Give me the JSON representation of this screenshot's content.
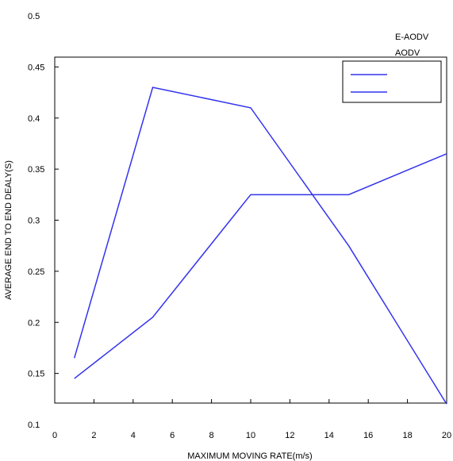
{
  "chart_data": {
    "type": "line",
    "xlabel": "MAXIMUM MOVING RATE(m/s)",
    "ylabel": "AVERAGE END TO END DEALY(S)",
    "xlim": [
      0,
      20
    ],
    "ylim": [
      0.1,
      0.5
    ],
    "x_ticks": [
      "0",
      "2",
      "4",
      "6",
      "8",
      "10",
      "12",
      "14",
      "16",
      "18",
      "20"
    ],
    "y_ticks": [
      "0.1",
      "0.15",
      "0.2",
      "0.25",
      "0.3",
      "0.35",
      "0.4",
      "0.45",
      "0.5"
    ],
    "grid": false,
    "legend_position": "top-right",
    "series": [
      {
        "name": "E-AODV",
        "color": "#3333ee",
        "x": [
          1,
          5,
          10,
          15,
          20
        ],
        "y": [
          0.165,
          0.43,
          0.41,
          0.275,
          0.12
        ]
      },
      {
        "name": "AODV",
        "color": "#3333ee",
        "x": [
          1,
          5,
          10,
          15,
          20
        ],
        "y": [
          0.145,
          0.205,
          0.325,
          0.325,
          0.365
        ]
      }
    ]
  }
}
